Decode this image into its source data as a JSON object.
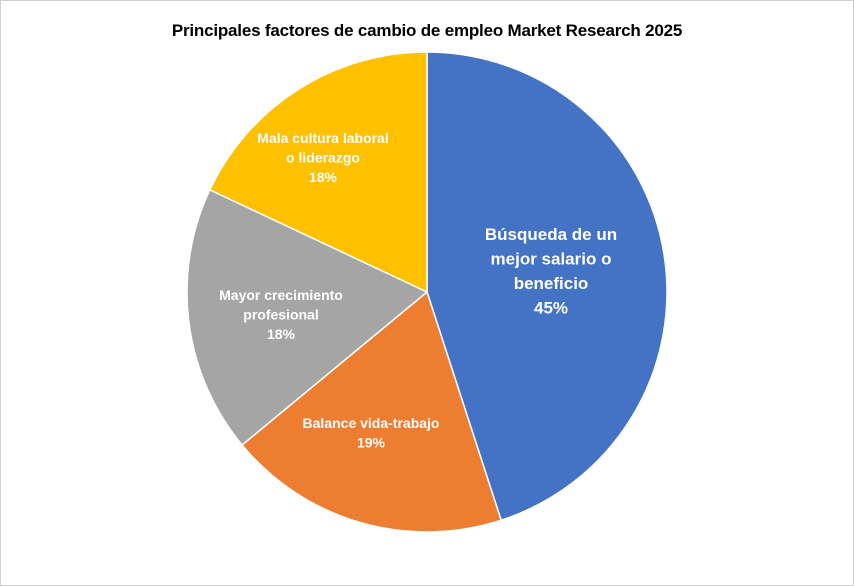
{
  "chart_data": {
    "type": "pie",
    "title": "Principales factores de cambio de empleo Market Research 2025",
    "slices": [
      {
        "label_lines": [
          "Búsqueda de un",
          "mejor salario o",
          "beneficio"
        ],
        "value_label": "45%",
        "value": 45,
        "color": "#4472C4"
      },
      {
        "label_lines": [
          "Balance vida-trabajo"
        ],
        "value_label": "19%",
        "value": 19,
        "color": "#ED7D31"
      },
      {
        "label_lines": [
          "Mayor crecimiento",
          "profesional"
        ],
        "value_label": "18%",
        "value": 18,
        "color": "#A5A5A5"
      },
      {
        "label_lines": [
          "Mala cultura laboral",
          "o liderazgo"
        ],
        "value_label": "18%",
        "value": 18,
        "color": "#FFC000"
      }
    ],
    "legend": "none",
    "data_labels": "inside"
  }
}
